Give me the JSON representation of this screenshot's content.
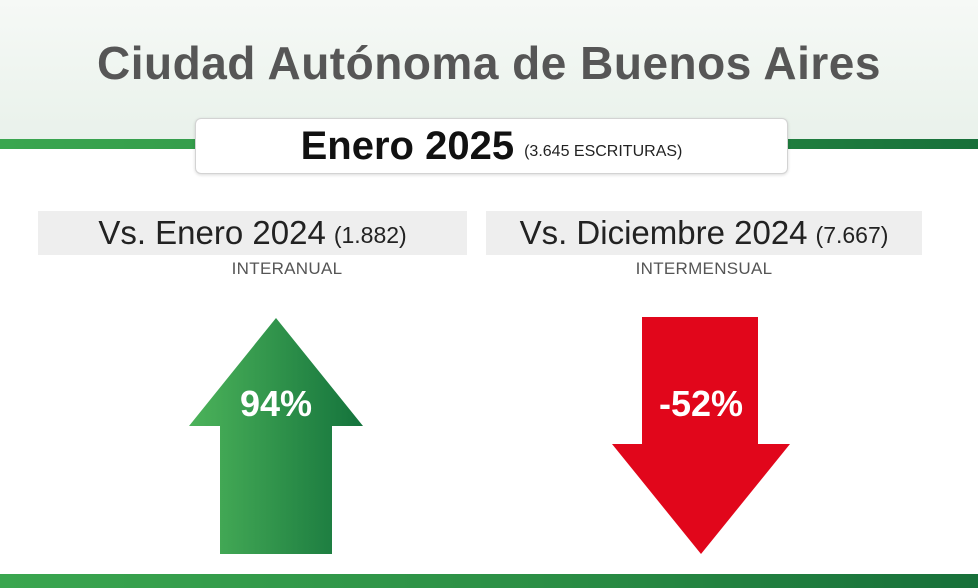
{
  "title": "Ciudad Autónoma de Buenos Aires",
  "period": {
    "label": "Enero 2025",
    "count_text": "(3.645 ESCRITURAS)"
  },
  "comparisons": [
    {
      "label": "Vs. Enero 2024",
      "count": "(1.882)",
      "type": "INTERANUAL",
      "change": "94%",
      "direction": "up",
      "color": "#2f9a4a"
    },
    {
      "label": "Vs. Diciembre 2024",
      "count": "(7.667)",
      "type": "INTERMENSUAL",
      "change": "-52%",
      "direction": "down",
      "color": "#e1061b"
    }
  ],
  "icons": {
    "up": "arrow-up-icon",
    "down": "arrow-down-icon"
  }
}
